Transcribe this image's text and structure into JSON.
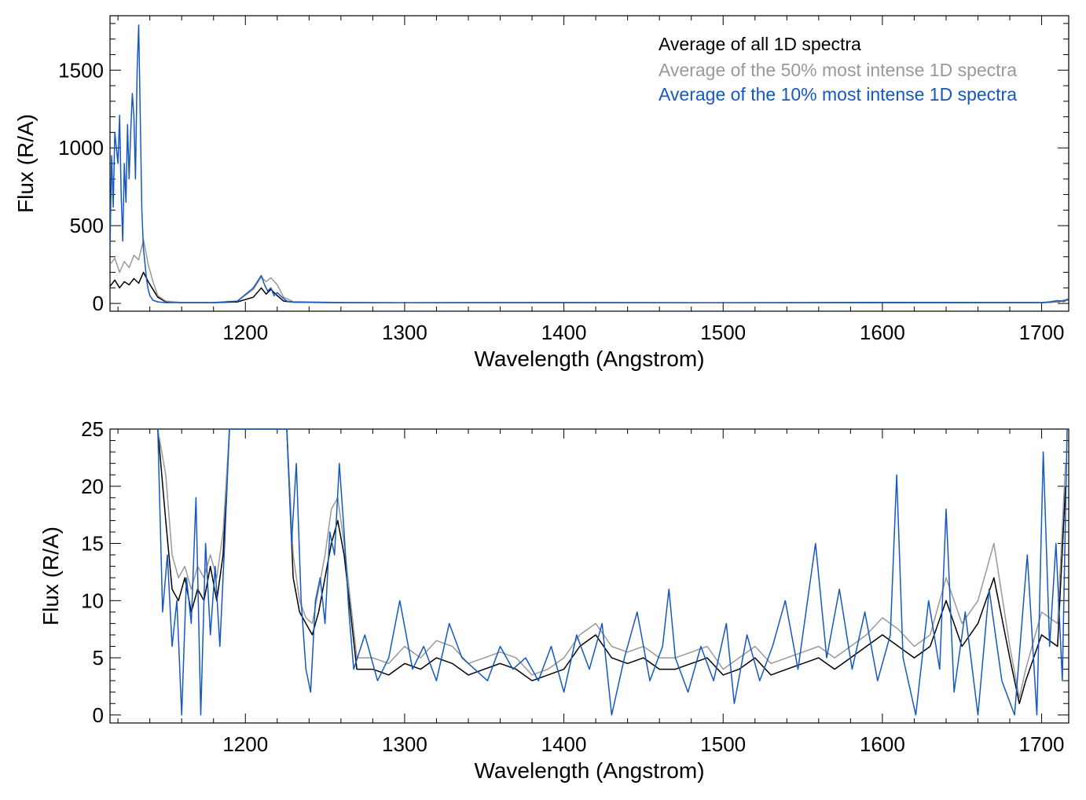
{
  "colors": {
    "all": "#000000",
    "top50": "#999999",
    "top10": "#1558c0"
  },
  "chart_data": [
    {
      "type": "line",
      "xlabel": "Wavelength (Angstrom)",
      "ylabel": "Flux (R/A)",
      "xlim": [
        1115,
        1717
      ],
      "ylim": [
        -50,
        1850
      ],
      "x_ticks": [
        1200,
        1300,
        1400,
        1500,
        1600,
        1700
      ],
      "x_tick_labels": [
        "1200",
        "1300",
        "1400",
        "1500",
        "1600",
        "1700"
      ],
      "y_ticks": [
        0,
        500,
        1000,
        1500
      ],
      "y_tick_labels": [
        "0",
        "500",
        "1000",
        "1500"
      ],
      "legend_position": "top-right",
      "series": [
        {
          "name": "Average of all 1D spectra",
          "color_key": "all",
          "x": [
            1115,
            1118,
            1121,
            1124,
            1127,
            1130,
            1133,
            1136,
            1139,
            1142,
            1145,
            1150,
            1160,
            1180,
            1195,
            1205,
            1210,
            1213,
            1216,
            1220,
            1224,
            1230,
            1260,
            1300,
            1400,
            1500,
            1600,
            1700,
            1710,
            1717
          ],
          "y": [
            110,
            150,
            100,
            140,
            120,
            160,
            130,
            200,
            140,
            90,
            40,
            10,
            5,
            5,
            10,
            40,
            100,
            60,
            90,
            50,
            15,
            8,
            5,
            4,
            5,
            4,
            5,
            5,
            10,
            25
          ]
        },
        {
          "name": "Average of the 50% most intense 1D spectra",
          "color_key": "top50",
          "x": [
            1115,
            1118,
            1121,
            1124,
            1127,
            1130,
            1133,
            1136,
            1139,
            1142,
            1145,
            1150,
            1160,
            1180,
            1195,
            1205,
            1210,
            1213,
            1216,
            1220,
            1224,
            1230,
            1260,
            1300,
            1400,
            1500,
            1600,
            1700,
            1710,
            1717
          ],
          "y": [
            250,
            290,
            200,
            270,
            230,
            310,
            280,
            410,
            250,
            140,
            50,
            15,
            6,
            6,
            15,
            90,
            170,
            140,
            165,
            120,
            40,
            12,
            6,
            5,
            6,
            5,
            6,
            6,
            12,
            30
          ]
        },
        {
          "name": "Average of the 10% most intense 1D spectra",
          "color_key": "top10",
          "x": [
            1115,
            1116,
            1117,
            1118,
            1120,
            1121,
            1122,
            1123,
            1124,
            1125,
            1126,
            1127,
            1128,
            1129,
            1130,
            1131,
            1132,
            1133,
            1134,
            1135,
            1136,
            1137,
            1138,
            1139,
            1140,
            1142,
            1145,
            1150,
            1160,
            1180,
            1195,
            1205,
            1210,
            1212,
            1214,
            1216,
            1218,
            1220,
            1223,
            1226,
            1230,
            1260,
            1300,
            1400,
            1500,
            1600,
            1700,
            1705,
            1710,
            1714,
            1717
          ],
          "y": [
            350,
            950,
            620,
            1100,
            900,
            1210,
            700,
            400,
            900,
            650,
            1150,
            800,
            1100,
            1350,
            1200,
            800,
            1500,
            1790,
            1200,
            600,
            350,
            250,
            150,
            90,
            50,
            20,
            10,
            5,
            5,
            5,
            15,
            100,
            180,
            120,
            80,
            100,
            50,
            70,
            40,
            15,
            8,
            5,
            4,
            5,
            4,
            6,
            5,
            10,
            18,
            12,
            30
          ]
        }
      ]
    },
    {
      "type": "line",
      "xlabel": "Wavelength (Angstrom)",
      "ylabel": "Flux (R/A)",
      "xlim": [
        1115,
        1717
      ],
      "ylim": [
        -0.7,
        25
      ],
      "x_ticks": [
        1200,
        1300,
        1400,
        1500,
        1600,
        1700
      ],
      "x_tick_labels": [
        "1200",
        "1300",
        "1400",
        "1500",
        "1600",
        "1700"
      ],
      "y_ticks": [
        0,
        5,
        10,
        15,
        20,
        25
      ],
      "y_tick_labels": [
        "0",
        "5",
        "10",
        "15",
        "20",
        "25"
      ],
      "series": [
        {
          "name": "Average of all 1D spectra",
          "color_key": "all",
          "x": [
            1145,
            1150,
            1154,
            1158,
            1162,
            1166,
            1170,
            1174,
            1178,
            1182,
            1186,
            1190,
            1226,
            1230,
            1234,
            1238,
            1242,
            1246,
            1250,
            1254,
            1258,
            1262,
            1266,
            1270,
            1280,
            1290,
            1300,
            1310,
            1320,
            1330,
            1340,
            1350,
            1360,
            1370,
            1380,
            1390,
            1400,
            1410,
            1420,
            1430,
            1440,
            1450,
            1460,
            1470,
            1480,
            1490,
            1500,
            1510,
            1520,
            1530,
            1540,
            1550,
            1560,
            1570,
            1580,
            1590,
            1600,
            1610,
            1620,
            1630,
            1640,
            1650,
            1660,
            1670,
            1680,
            1686,
            1690,
            1700,
            1710,
            1715
          ],
          "y": [
            25,
            17,
            11,
            10,
            12,
            9,
            11,
            10,
            13,
            10,
            14,
            25,
            25,
            12,
            9,
            8,
            7,
            9,
            12,
            15,
            17,
            14,
            9,
            4,
            4,
            3.5,
            4.5,
            4,
            5,
            4.5,
            3.5,
            4,
            4.5,
            4,
            3,
            3.5,
            4,
            6,
            7,
            5,
            4.5,
            5,
            4,
            4,
            4.5,
            5,
            3.5,
            4,
            5,
            3.5,
            4,
            4.5,
            5,
            4,
            5,
            6,
            7,
            6,
            5,
            6,
            10,
            6,
            8,
            12,
            5,
            1,
            3,
            7,
            6,
            20
          ]
        },
        {
          "name": "Average of the 50% most intense 1D spectra",
          "color_key": "top50",
          "x": [
            1145,
            1150,
            1154,
            1158,
            1162,
            1166,
            1170,
            1174,
            1178,
            1182,
            1186,
            1190,
            1226,
            1230,
            1234,
            1238,
            1242,
            1246,
            1250,
            1254,
            1258,
            1262,
            1266,
            1270,
            1280,
            1290,
            1300,
            1310,
            1320,
            1330,
            1340,
            1350,
            1360,
            1370,
            1380,
            1390,
            1400,
            1410,
            1420,
            1430,
            1440,
            1450,
            1460,
            1470,
            1480,
            1490,
            1500,
            1510,
            1520,
            1530,
            1540,
            1550,
            1560,
            1570,
            1580,
            1590,
            1600,
            1610,
            1620,
            1630,
            1640,
            1650,
            1660,
            1670,
            1680,
            1686,
            1690,
            1700,
            1710,
            1715
          ],
          "y": [
            25,
            21,
            14,
            12,
            13,
            11,
            13,
            12,
            14,
            12,
            16,
            25,
            25,
            14,
            10,
            8.5,
            8,
            11,
            14,
            18,
            19,
            15,
            10,
            5,
            5,
            4.5,
            6,
            5,
            6.5,
            6,
            4.5,
            5,
            5.5,
            5,
            3.5,
            4,
            5,
            7,
            8,
            6,
            5.5,
            6,
            5,
            5,
            5.5,
            6,
            4,
            5,
            6,
            4.5,
            5,
            5.5,
            6,
            5,
            6,
            7,
            8.5,
            7.5,
            6,
            7,
            12,
            8,
            10,
            15,
            6,
            1.5,
            4,
            9,
            8,
            22
          ]
        },
        {
          "name": "Average of the 10% most intense 1D spectra",
          "color_key": "top10",
          "x": [
            1145,
            1148,
            1151,
            1154,
            1157,
            1160,
            1163,
            1166,
            1169,
            1172,
            1175,
            1178,
            1181,
            1184,
            1187,
            1190,
            1226,
            1229,
            1232,
            1235,
            1238,
            1241,
            1244,
            1247,
            1250,
            1253,
            1256,
            1259,
            1262,
            1265,
            1268,
            1275,
            1283,
            1290,
            1297,
            1305,
            1312,
            1320,
            1328,
            1336,
            1344,
            1352,
            1360,
            1368,
            1376,
            1384,
            1392,
            1400,
            1408,
            1416,
            1424,
            1430,
            1438,
            1446,
            1454,
            1462,
            1466,
            1470,
            1478,
            1486,
            1494,
            1502,
            1507,
            1515,
            1523,
            1531,
            1539,
            1547,
            1555,
            1558,
            1565,
            1573,
            1581,
            1589,
            1597,
            1605,
            1609,
            1613,
            1621,
            1629,
            1636,
            1640,
            1645,
            1652,
            1660,
            1667,
            1675,
            1683,
            1691,
            1697,
            1701,
            1705,
            1709,
            1713,
            1716
          ],
          "y": [
            25,
            9,
            14,
            6,
            10,
            0,
            12,
            8,
            19,
            0,
            15,
            7,
            13,
            6,
            15,
            25,
            25,
            15,
            22,
            10,
            4,
            2,
            10,
            12,
            8,
            16,
            14,
            22,
            16,
            9,
            4,
            7,
            3,
            5,
            10,
            4,
            6,
            3,
            8,
            5,
            4,
            3,
            6,
            4,
            5,
            3,
            6,
            2,
            7,
            4,
            8,
            0,
            5,
            9,
            3,
            6,
            11,
            5,
            2,
            6,
            3,
            8,
            1,
            7,
            3,
            6,
            10,
            4,
            12,
            15,
            5,
            11,
            4,
            9,
            3,
            7,
            21,
            5,
            0,
            10,
            4,
            18,
            2,
            9,
            0,
            11,
            3,
            0,
            14,
            0,
            23,
            6,
            15,
            3,
            25
          ]
        }
      ]
    }
  ]
}
